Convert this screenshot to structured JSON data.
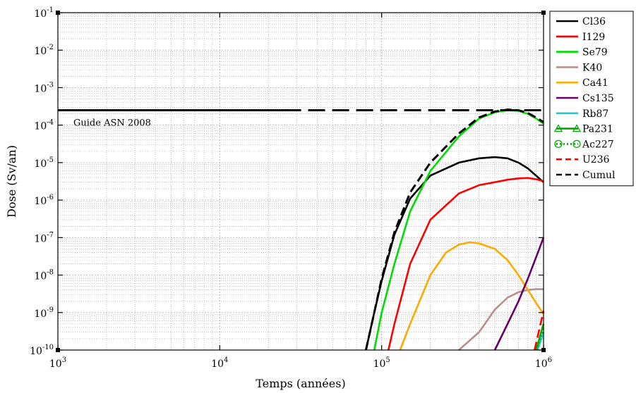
{
  "chart_data": {
    "type": "line",
    "xlabel": "Temps (années)",
    "ylabel": "Dose (Sv/an)",
    "x_scale": "log",
    "y_scale": "log",
    "xlim": [
      1000,
      1000000
    ],
    "ylim": [
      1e-10,
      0.1
    ],
    "grid": true,
    "legend_position": "right",
    "x_ticks": [
      {
        "value": 1000,
        "base": "10",
        "exp": "3"
      },
      {
        "value": 10000,
        "base": "10",
        "exp": "4"
      },
      {
        "value": 100000,
        "base": "10",
        "exp": "5"
      },
      {
        "value": 1000000,
        "base": "10",
        "exp": "6"
      }
    ],
    "y_ticks": [
      {
        "value": 0.1,
        "base": "10",
        "exp": "-1"
      },
      {
        "value": 0.01,
        "base": "10",
        "exp": "-2"
      },
      {
        "value": 0.001,
        "base": "10",
        "exp": "-3"
      },
      {
        "value": 0.0001,
        "base": "10",
        "exp": "-4"
      },
      {
        "value": 1e-05,
        "base": "10",
        "exp": "-5"
      },
      {
        "value": 1e-06,
        "base": "10",
        "exp": "-6"
      },
      {
        "value": 1e-07,
        "base": "10",
        "exp": "-7"
      },
      {
        "value": 1e-08,
        "base": "10",
        "exp": "-8"
      },
      {
        "value": 1e-09,
        "base": "10",
        "exp": "-9"
      },
      {
        "value": 1e-10,
        "base": "10",
        "exp": "-10"
      }
    ],
    "reference_line": {
      "label": "Guide ASN 2008",
      "y": 0.00025,
      "solid_until_x": 25000,
      "color": "#000000"
    },
    "series": [
      {
        "name": "Cl36",
        "color": "#000000",
        "dash": "solid",
        "x": [
          80000,
          90000,
          100000,
          120000,
          150000,
          200000,
          300000,
          400000,
          500000,
          600000,
          700000,
          800000,
          1000000
        ],
        "y": [
          1e-10,
          1e-09,
          7e-09,
          1.2e-07,
          1.1e-06,
          4.5e-06,
          1e-05,
          1.3e-05,
          1.4e-05,
          1.3e-05,
          1e-05,
          7e-06,
          3e-06
        ]
      },
      {
        "name": "I129",
        "color": "#ff0000",
        "dash": "solid",
        "x": [
          110000,
          120000,
          150000,
          200000,
          300000,
          400000,
          500000,
          600000,
          700000,
          800000,
          900000,
          1000000
        ],
        "y": [
          1e-10,
          5e-10,
          2e-08,
          3e-07,
          1.5e-06,
          2.5e-06,
          3e-06,
          3.5e-06,
          3.8e-06,
          3.9e-06,
          3.6e-06,
          3.2e-06
        ]
      },
      {
        "name": "Se79",
        "color": "#00dd00",
        "dash": "solid",
        "x": [
          90000,
          100000,
          120000,
          150000,
          200000,
          300000,
          400000,
          500000,
          600000,
          700000,
          800000,
          900000,
          1000000
        ],
        "y": [
          1e-10,
          1e-09,
          2e-08,
          5e-07,
          6e-06,
          5e-05,
          0.00015,
          0.00022,
          0.00025,
          0.00024,
          0.0002,
          0.00015,
          0.00011
        ]
      },
      {
        "name": "K40",
        "color": "#b8908a",
        "dash": "solid",
        "x": [
          300000,
          400000,
          500000,
          600000,
          700000,
          800000,
          900000,
          1000000
        ],
        "y": [
          1e-10,
          3e-10,
          1.2e-09,
          2.5e-09,
          3.5e-09,
          4e-09,
          4.2e-09,
          4.2e-09
        ]
      },
      {
        "name": "Ca41",
        "color": "#ffaa00",
        "dash": "solid",
        "x": [
          130000,
          150000,
          200000,
          250000,
          300000,
          350000,
          400000,
          500000,
          600000,
          700000,
          800000,
          900000,
          1000000
        ],
        "y": [
          1e-10,
          5e-10,
          1e-08,
          4e-08,
          6.5e-08,
          7.5e-08,
          7e-08,
          5e-08,
          2.5e-08,
          1e-08,
          4e-09,
          1.8e-09,
          9e-10
        ]
      },
      {
        "name": "Cs135",
        "color": "#660066",
        "dash": "solid",
        "x": [
          500000,
          600000,
          700000,
          800000,
          900000,
          1000000
        ],
        "y": [
          1e-10,
          5e-10,
          2e-09,
          8e-09,
          3e-08,
          1e-07
        ]
      },
      {
        "name": "Rb87",
        "color": "#22cccc",
        "dash": "solid",
        "x": [
          920000,
          1000000
        ],
        "y": [
          1e-10,
          3e-10
        ]
      },
      {
        "name": "Pa231",
        "color": "#00aa00",
        "dash": "solid",
        "x": [
          900000,
          1000000
        ],
        "y": [
          1e-10,
          5e-10
        ]
      },
      {
        "name": "Ac227",
        "color": "#00aa00",
        "dash": "dotted",
        "x": [
          910000,
          1000000
        ],
        "y": [
          1e-10,
          4e-10
        ]
      },
      {
        "name": "U236",
        "color": "#ff0000",
        "dash": "dashed",
        "x": [
          880000,
          1000000
        ],
        "y": [
          1e-10,
          1.1e-09
        ]
      },
      {
        "name": "Cumul",
        "color": "#000000",
        "dash": "dashed",
        "x": [
          80000,
          90000,
          100000,
          120000,
          150000,
          200000,
          300000,
          400000,
          500000,
          600000,
          700000,
          800000,
          900000,
          1000000
        ],
        "y": [
          1e-10,
          1e-09,
          8e-09,
          1.4e-07,
          1.6e-06,
          1e-05,
          6e-05,
          0.00016,
          0.00023,
          0.00026,
          0.00025,
          0.00021,
          0.00016,
          0.00012
        ]
      }
    ]
  }
}
